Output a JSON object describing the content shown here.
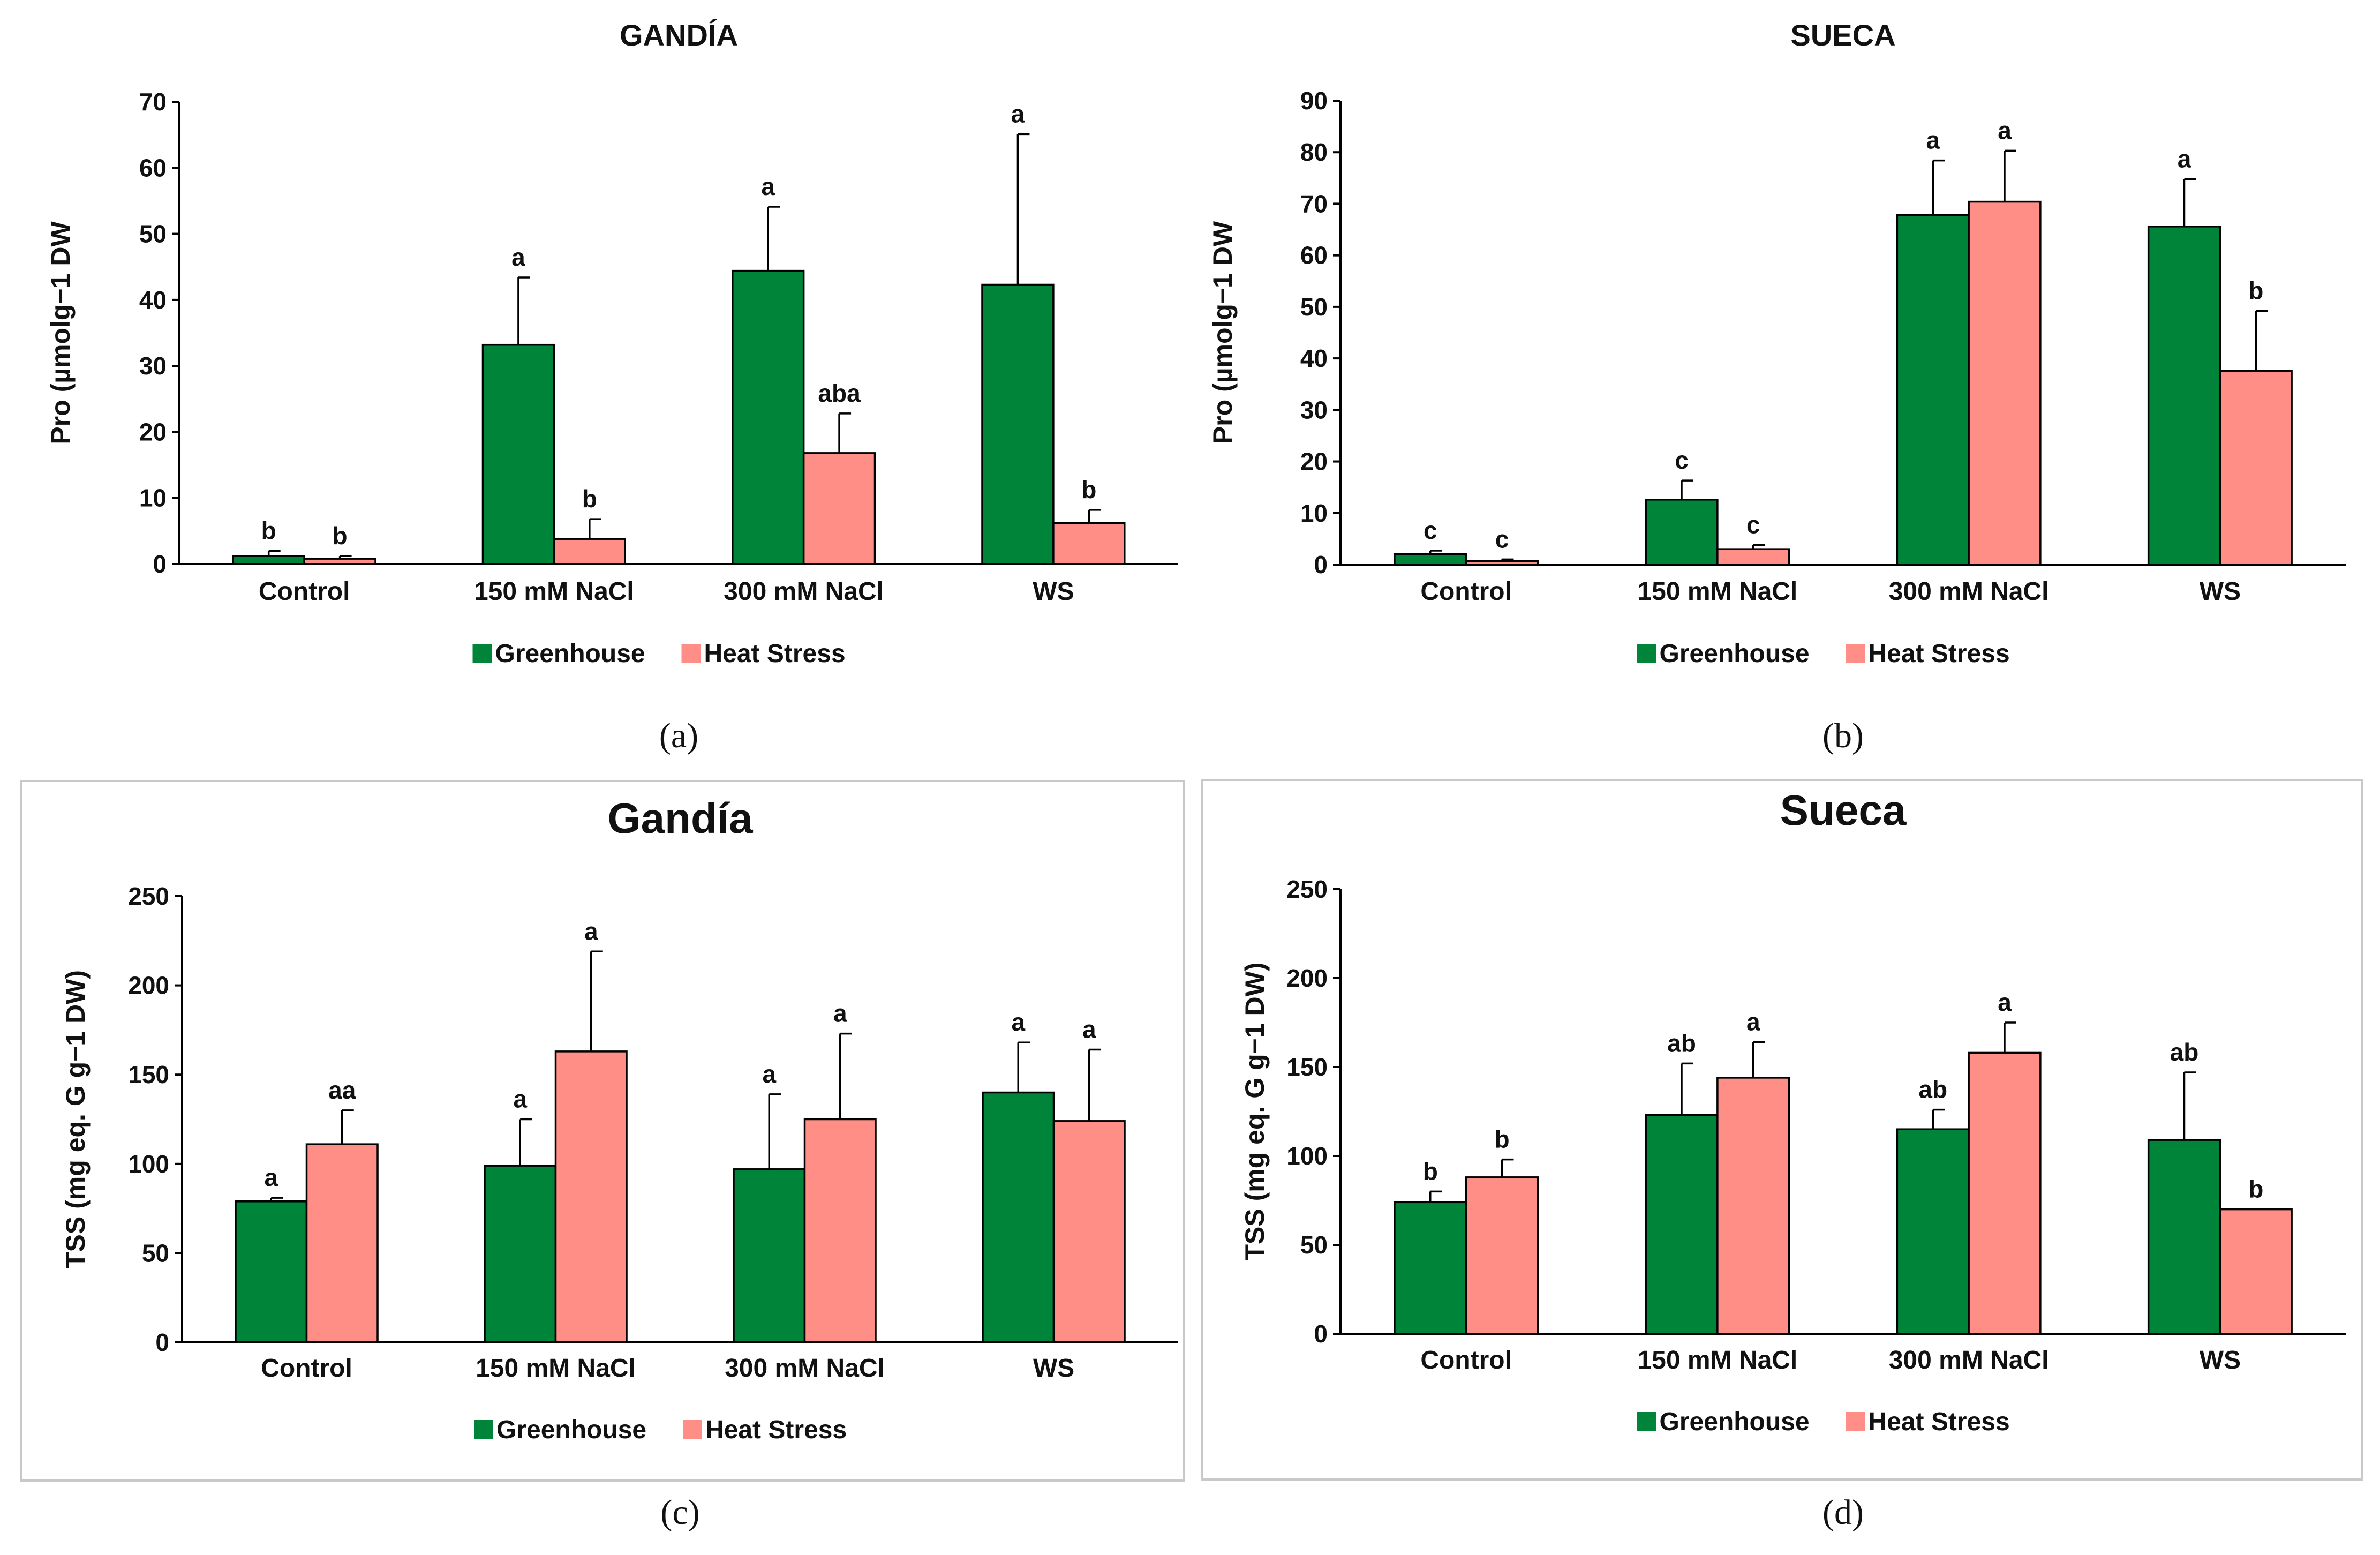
{
  "colors": {
    "greenhouse": "#00843a",
    "heat_stress": "#ff8f86",
    "frame": "#c9c9c9",
    "axis": "#000000"
  },
  "chart_data": [
    {
      "id": "a",
      "caption": "(a)",
      "type": "bar",
      "title": "GANDÍA",
      "ylabel": "Pro (µmolg−1 DW",
      "ylim": [
        0,
        70
      ],
      "yticks": [
        0,
        10,
        20,
        30,
        40,
        50,
        60,
        70
      ],
      "categories": [
        "Control",
        "150 mM NaCl",
        "300 mM NaCl",
        "WS"
      ],
      "series": [
        {
          "name": "Greenhouse",
          "values": [
            1.2,
            33.2,
            44.4,
            42.3
          ],
          "errors": [
            0.8,
            10.2,
            9.7,
            22.8
          ],
          "letters": [
            "b",
            "a",
            "a",
            "a"
          ]
        },
        {
          "name": "Heat Stress",
          "values": [
            0.8,
            3.8,
            16.8,
            6.2
          ],
          "errors": [
            0.4,
            3.0,
            6.0,
            2.0
          ],
          "letters": [
            "b",
            "b",
            "aba",
            "b"
          ]
        }
      ],
      "legend": [
        "Greenhouse",
        "Heat Stress"
      ],
      "frame": false
    },
    {
      "id": "b",
      "caption": "(b)",
      "type": "bar",
      "title": "SUECA",
      "ylabel": "Pro (µmolg−1 DW",
      "ylim": [
        0,
        90
      ],
      "yticks": [
        0,
        10,
        20,
        30,
        40,
        50,
        60,
        70,
        80,
        90
      ],
      "categories": [
        "Control",
        "150 mM NaCl",
        "300 mM NaCl",
        "WS"
      ],
      "series": [
        {
          "name": "Greenhouse",
          "values": [
            2.0,
            12.6,
            67.8,
            65.6
          ],
          "errors": [
            0.7,
            3.7,
            10.6,
            9.2
          ],
          "letters": [
            "c",
            "c",
            "a",
            "a"
          ]
        },
        {
          "name": "Heat Stress",
          "values": [
            0.7,
            3.0,
            70.4,
            37.6
          ],
          "errors": [
            0.3,
            0.8,
            9.9,
            11.6
          ],
          "letters": [
            "c",
            "c",
            "a",
            "b"
          ]
        }
      ],
      "legend": [
        "Greenhouse",
        "Heat Stress"
      ],
      "frame": false
    },
    {
      "id": "c",
      "caption": "(c)",
      "type": "bar",
      "title": "Gandía",
      "ylabel": "TSS (mg eq. G g−1 DW)",
      "ylim": [
        0,
        250
      ],
      "yticks": [
        0,
        50,
        100,
        150,
        200,
        250
      ],
      "categories": [
        "Control",
        "150 mM NaCl",
        "300 mM NaCl",
        "WS"
      ],
      "series": [
        {
          "name": "Greenhouse",
          "values": [
            79,
            99,
            97,
            140
          ],
          "errors": [
            2,
            26,
            42,
            28
          ],
          "letters": [
            "a",
            "a",
            "a",
            "a"
          ]
        },
        {
          "name": "Heat Stress",
          "values": [
            111,
            163,
            125,
            124
          ],
          "errors": [
            19,
            56,
            48,
            40
          ],
          "letters": [
            "aa",
            "a",
            "a",
            "a"
          ]
        }
      ],
      "legend": [
        "Greenhouse",
        "Heat Stress"
      ],
      "frame": true
    },
    {
      "id": "d",
      "caption": "(d)",
      "type": "bar",
      "title": "Sueca",
      "ylabel": "TSS (mg eq. G g−1 DW)",
      "ylim": [
        0,
        250
      ],
      "yticks": [
        0,
        50,
        100,
        150,
        200,
        250
      ],
      "categories": [
        "Control",
        "150 mM NaCl",
        "300 mM NaCl",
        "WS"
      ],
      "series": [
        {
          "name": "Greenhouse",
          "values": [
            74,
            123,
            115,
            109
          ],
          "errors": [
            6,
            29,
            11,
            38
          ],
          "letters": [
            "b",
            "ab",
            "ab",
            "ab"
          ]
        },
        {
          "name": "Heat Stress",
          "values": [
            88,
            144,
            158,
            70
          ],
          "errors": [
            10,
            20,
            17,
            0
          ],
          "letters": [
            "b",
            "a",
            "a",
            "b"
          ]
        }
      ],
      "legend": [
        "Greenhouse",
        "Heat Stress"
      ],
      "frame": true
    }
  ]
}
